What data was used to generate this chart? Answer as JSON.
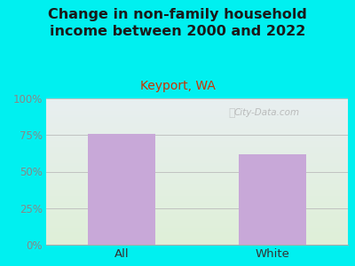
{
  "title": "Change in non-family household\nincome between 2000 and 2022",
  "subtitle": "Keyport, WA",
  "categories": [
    "All",
    "White"
  ],
  "values": [
    76,
    62
  ],
  "bar_color": "#c8a8d8",
  "background_outer": "#00f0f0",
  "background_plot_top": "#e8eef0",
  "background_plot_bottom": "#dff0d8",
  "title_color": "#1a1a1a",
  "subtitle_color": "#cc3300",
  "axis_label_color": "#888888",
  "tick_label_color": "#555555",
  "xticklabel_color": "#333333",
  "ylim": [
    0,
    100
  ],
  "yticks": [
    0,
    25,
    50,
    75,
    100
  ],
  "ytick_labels": [
    "0%",
    "25%",
    "50%",
    "75%",
    "100%"
  ],
  "title_fontsize": 11.5,
  "subtitle_fontsize": 10,
  "watermark": "City-Data.com"
}
